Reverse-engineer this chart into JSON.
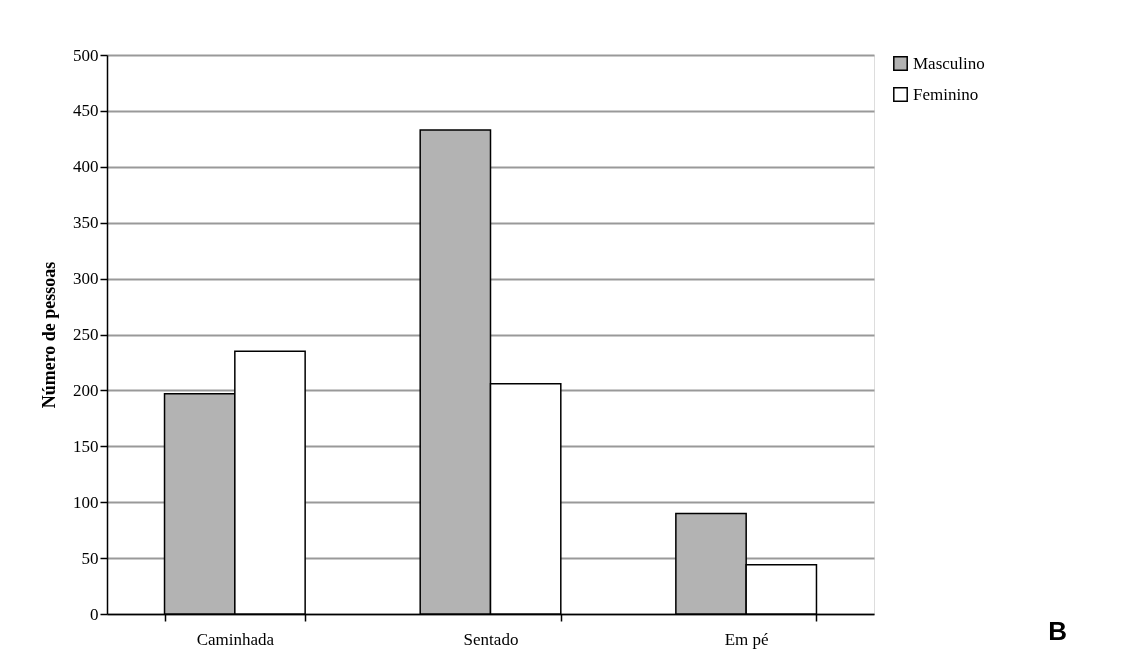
{
  "chart_data": {
    "type": "bar",
    "categories": [
      "Caminhada",
      "Sentado",
      "Em pé"
    ],
    "series": [
      {
        "name": "Masculino",
        "color": "#b3b3b3",
        "values": [
          197,
          433,
          90
        ]
      },
      {
        "name": "Feminino",
        "color": "#ffffff",
        "values": [
          235,
          206,
          44
        ]
      }
    ],
    "ylabel": "Número de pessoas",
    "ylim": [
      0,
      500
    ],
    "yticks": [
      0,
      50,
      100,
      150,
      200,
      250,
      300,
      350,
      400,
      450,
      500
    ],
    "grid": "y",
    "legend": "right",
    "annotations": [
      "B"
    ]
  }
}
